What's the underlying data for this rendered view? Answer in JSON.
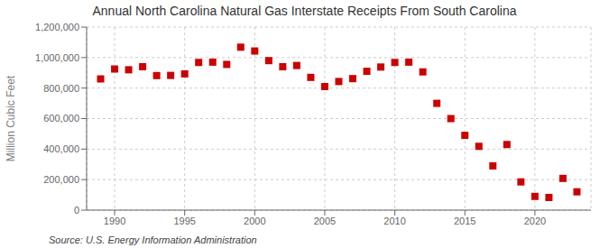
{
  "chart_data": {
    "type": "scatter",
    "title": "Annual North Carolina Natural Gas Interstate Receipts From South Carolina",
    "ylabel": "Million Cubic Feet",
    "annotations": [
      "Source: U.S. Energy Information Administration"
    ],
    "x": [
      1989,
      1990,
      1991,
      1992,
      1993,
      1994,
      1995,
      1996,
      1997,
      1998,
      1999,
      2000,
      2001,
      2002,
      2003,
      2004,
      2005,
      2006,
      2007,
      2008,
      2009,
      2010,
      2011,
      2012,
      2013,
      2014,
      2015,
      2016,
      2017,
      2018,
      2019,
      2020,
      2021,
      2022,
      2023
    ],
    "values": [
      860000,
      925000,
      920000,
      940000,
      882000,
      883000,
      893000,
      968000,
      970000,
      955000,
      1068000,
      1043000,
      980000,
      940000,
      948000,
      870000,
      810000,
      843000,
      862000,
      910000,
      938000,
      968000,
      970000,
      906000,
      700000,
      600000,
      490000,
      418000,
      290000,
      430000,
      185000,
      90000,
      83000,
      208000,
      120000
    ],
    "color": "#cc0000",
    "marker": "square",
    "xlim": [
      1988,
      2024
    ],
    "ylim": [
      0,
      1200000
    ],
    "xticks": [
      1990,
      1995,
      2000,
      2005,
      2010,
      2015,
      2020
    ],
    "yticks": [
      0,
      {
        "value": 200000,
        "label": "200,000"
      },
      {
        "value": 400000,
        "label": "400,000"
      },
      {
        "value": 600000,
        "label": "600,000"
      },
      {
        "value": 800000,
        "label": "800,000"
      },
      {
        "value": 1000000,
        "label": "1,000,000"
      },
      {
        "value": 1200000,
        "label": "1,200,000"
      }
    ],
    "grid": true
  }
}
